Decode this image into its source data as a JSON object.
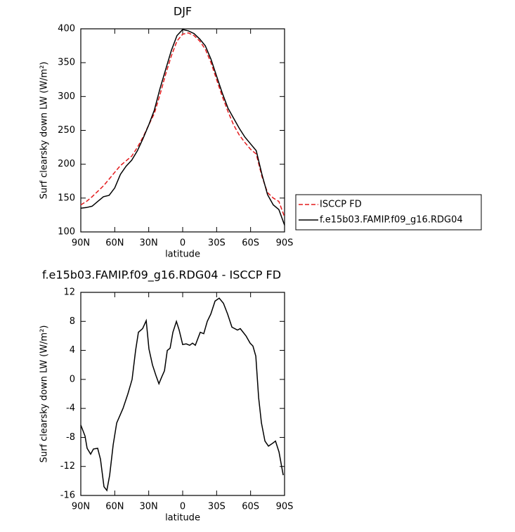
{
  "chart_data": [
    {
      "type": "line",
      "title": "DJF",
      "x_label": "latitude",
      "y_label": "Surf clearsky down LW (W/m²)",
      "xlim": [
        90,
        -90
      ],
      "xticks": [
        {
          "value": 90,
          "label": "90N"
        },
        {
          "value": 60,
          "label": "60N"
        },
        {
          "value": 30,
          "label": "30N"
        },
        0,
        {
          "value": -30,
          "label": "30S"
        },
        {
          "value": -60,
          "label": "60S"
        },
        {
          "value": -90,
          "label": "90S"
        }
      ],
      "ylim": [
        100,
        400
      ],
      "yticks": [
        100,
        150,
        200,
        250,
        300,
        350,
        400
      ],
      "legend": "right",
      "x": [
        90,
        85,
        80,
        75,
        70,
        65,
        60,
        55,
        50,
        45,
        40,
        35,
        30,
        25,
        20,
        15,
        10,
        5,
        0,
        -5,
        -10,
        -15,
        -20,
        -25,
        -30,
        -35,
        -40,
        -45,
        -50,
        -55,
        -60,
        -65,
        -70,
        -75,
        -80,
        -85,
        -90
      ],
      "series": [
        {
          "name": "ISCCP FD",
          "color": "#e41a1c",
          "dash": true,
          "values": [
            140,
            145,
            152,
            160,
            168,
            178,
            188,
            198,
            205,
            212,
            225,
            240,
            258,
            275,
            303,
            333,
            360,
            382,
            392,
            394,
            390,
            382,
            370,
            350,
            325,
            300,
            278,
            258,
            243,
            232,
            222,
            215,
            182,
            158,
            150,
            145,
            122
          ]
        },
        {
          "name": "f.e15b03.FAMIP.f09_g16.RDG04",
          "color": "#000000",
          "dash": false,
          "values": [
            135,
            136,
            138,
            145,
            152,
            154,
            165,
            185,
            197,
            206,
            220,
            238,
            258,
            280,
            312,
            340,
            368,
            390,
            399,
            397,
            393,
            385,
            375,
            355,
            330,
            305,
            283,
            268,
            253,
            240,
            230,
            220,
            185,
            155,
            140,
            133,
            110
          ]
        }
      ]
    },
    {
      "type": "line",
      "title": "f.e15b03.FAMIP.f09_g16.RDG04 - ISCCP FD",
      "x_label": "latitude",
      "y_label": "Surf clearsky down LW (W/m²)",
      "xlim": [
        90,
        -90
      ],
      "xticks": [
        {
          "value": 90,
          "label": "90N"
        },
        {
          "value": 60,
          "label": "60N"
        },
        {
          "value": 30,
          "label": "30N"
        },
        0,
        {
          "value": -30,
          "label": "30S"
        },
        {
          "value": -60,
          "label": "60S"
        },
        {
          "value": -90,
          "label": "90S"
        }
      ],
      "ylim": [
        -16,
        12
      ],
      "yticks": [
        -16,
        -12,
        -8,
        -4,
        0,
        4,
        8,
        12
      ],
      "x": [
        90,
        86.3,
        84.4,
        81.3,
        78.8,
        75.1,
        72.6,
        69.5,
        67,
        64.5,
        61.4,
        58.3,
        52.7,
        48.4,
        44.7,
        41.6,
        39.1,
        35.4,
        32.2,
        29.8,
        26.7,
        23.5,
        21,
        18.6,
        16.1,
        13.6,
        11.1,
        8.6,
        5.5,
        3.1,
        0,
        -3.1,
        -6.2,
        -8.7,
        -11.2,
        -15.5,
        -18.6,
        -21.7,
        -24.8,
        -28.6,
        -32.3,
        -36,
        -39.7,
        -43.5,
        -48.4,
        -50.9,
        -55.9,
        -59.6,
        -62.1,
        -64.6,
        -67.1,
        -69.6,
        -72.7,
        -75.8,
        -79.5,
        -82,
        -85.1,
        -88.8
      ],
      "series": [
        {
          "name": "f.e15b03.FAMIP.f09_g16.RDG04 - ISCCP FD",
          "color": "#000000",
          "dash": false,
          "values": [
            -6.3,
            -7.8,
            -9.5,
            -10.3,
            -9.6,
            -9.5,
            -11,
            -14.8,
            -15.3,
            -13.2,
            -9,
            -6,
            -4,
            -2,
            0,
            4,
            6.5,
            7,
            8.1,
            4.2,
            2,
            0.5,
            -0.6,
            0.3,
            1.2,
            4,
            4.3,
            6.5,
            8,
            6.8,
            4.8,
            4.9,
            4.7,
            5,
            4.7,
            6.5,
            6.3,
            8,
            9,
            10.8,
            11.2,
            10.5,
            9,
            7.2,
            6.8,
            7,
            6,
            5,
            4.6,
            3.2,
            -2.5,
            -6,
            -8.5,
            -9.2,
            -8.8,
            -8.5,
            -10,
            -13.2
          ]
        }
      ]
    }
  ]
}
